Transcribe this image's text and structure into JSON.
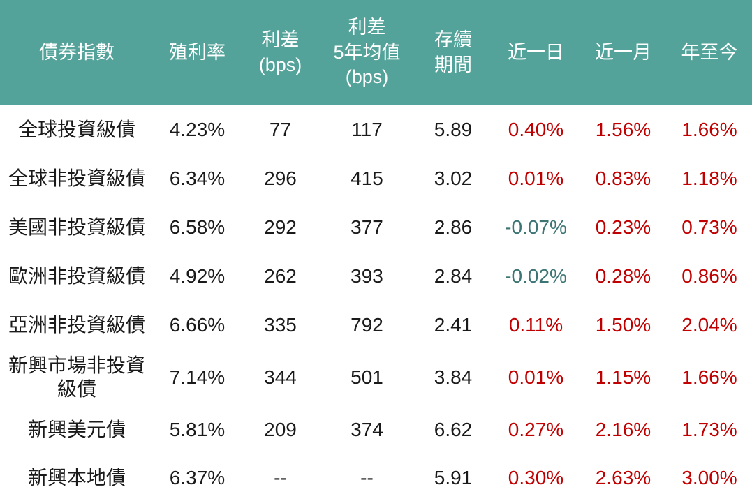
{
  "colors": {
    "header_bg": "#54A39A",
    "header_text": "#FFFFFF",
    "body_text": "#1A1A1A",
    "positive_change": "#C00000",
    "negative_change": "#3D7575"
  },
  "chart_data": {
    "type": "table",
    "columns": [
      "債券指數",
      "殖利率",
      "利差\n(bps)",
      "利差\n5年均值\n(bps)",
      "存續\n期間",
      "近一日",
      "近一月",
      "年至今"
    ],
    "rows": [
      {
        "name": "全球投資級債",
        "yield": "4.23%",
        "spread_bps": "77",
        "spread_5y_avg_bps": "117",
        "duration": "5.89",
        "chg_1d": "0.40%",
        "chg_1m": "1.56%",
        "chg_ytd": "1.66%"
      },
      {
        "name": "全球非投資級債",
        "yield": "6.34%",
        "spread_bps": "296",
        "spread_5y_avg_bps": "415",
        "duration": "3.02",
        "chg_1d": "0.01%",
        "chg_1m": "0.83%",
        "chg_ytd": "1.18%"
      },
      {
        "name": "美國非投資級債",
        "yield": "6.58%",
        "spread_bps": "292",
        "spread_5y_avg_bps": "377",
        "duration": "2.86",
        "chg_1d": "-0.07%",
        "chg_1m": "0.23%",
        "chg_ytd": "0.73%"
      },
      {
        "name": "歐洲非投資級債",
        "yield": "4.92%",
        "spread_bps": "262",
        "spread_5y_avg_bps": "393",
        "duration": "2.84",
        "chg_1d": "-0.02%",
        "chg_1m": "0.28%",
        "chg_ytd": "0.86%"
      },
      {
        "name": "亞洲非投資級債",
        "yield": "6.66%",
        "spread_bps": "335",
        "spread_5y_avg_bps": "792",
        "duration": "2.41",
        "chg_1d": "0.11%",
        "chg_1m": "1.50%",
        "chg_ytd": "2.04%"
      },
      {
        "name": "新興市場非投資\n級債",
        "yield": "7.14%",
        "spread_bps": "344",
        "spread_5y_avg_bps": "501",
        "duration": "3.84",
        "chg_1d": "0.01%",
        "chg_1m": "1.15%",
        "chg_ytd": "1.66%"
      },
      {
        "name": "新興美元債",
        "yield": "5.81%",
        "spread_bps": "209",
        "spread_5y_avg_bps": "374",
        "duration": "6.62",
        "chg_1d": "0.27%",
        "chg_1m": "2.16%",
        "chg_ytd": "1.73%"
      },
      {
        "name": "新興本地債",
        "yield": "6.37%",
        "spread_bps": "--",
        "spread_5y_avg_bps": "--",
        "duration": "5.91",
        "chg_1d": "0.30%",
        "chg_1m": "2.63%",
        "chg_ytd": "3.00%"
      }
    ]
  }
}
